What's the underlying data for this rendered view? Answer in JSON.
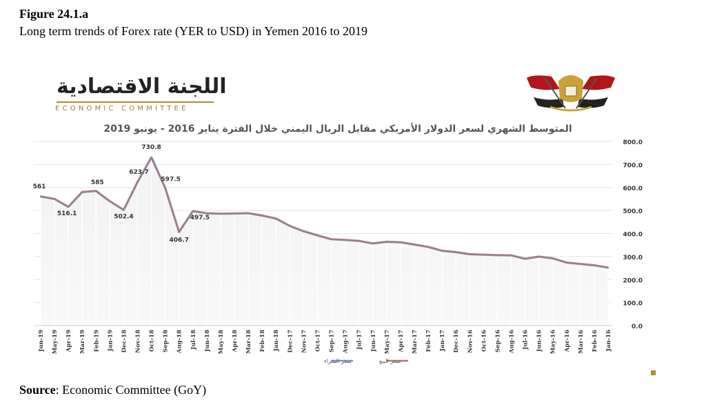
{
  "figure": {
    "label": "Figure 24.1.a",
    "caption": "Long term trends of Forex rate (YER to USD) in Yemen 2016 to 2019",
    "source_prefix": "Source",
    "source_text": ": Economic Committee (GoY)"
  },
  "logo": {
    "arabic": "اللجنة الاقتصادية",
    "english": "ECONOMIC COMMITTEE"
  },
  "emblem": {
    "icon": "yemen-eagle-emblem-icon"
  },
  "colors": {
    "buy_line": "#6f9bd1",
    "sell_line": "#b57670",
    "fill_top": "#f2f2f2",
    "fill_bottom": "#f9f9f9",
    "grid": "#e4e4e4",
    "text": "#333333"
  },
  "chart_data": {
    "type": "line",
    "title": "المتوسط الشهري لسعر الدولار الأمريكي مقابل الريال اليمني خلال الفترة يناير 2016 - يونيو 2019",
    "ylim": [
      0,
      800
    ],
    "y_ticks": [
      "800.0",
      "700.0",
      "600.0",
      "500.0",
      "400.0",
      "300.0",
      "200.0",
      "100.0",
      "0.0"
    ],
    "grid": true,
    "legend_position": "bottom-center",
    "categories": [
      "Jun-19",
      "May-19",
      "Apr-19",
      "Mar-19",
      "Feb-19",
      "Jan-19",
      "Dec-18",
      "Nov-18",
      "Oct-18",
      "Sep-18",
      "Aug-18",
      "Jul-18",
      "Jun-18",
      "May-18",
      "Apr-18",
      "Mar-18",
      "Feb-18",
      "Jan-18",
      "Dec-17",
      "Nov-17",
      "Oct-17",
      "Sep-17",
      "Aug-17",
      "Jul-17",
      "Jun-17",
      "May-17",
      "Apr-17",
      "Mar-17",
      "Feb-17",
      "Jan-17",
      "Dec-16",
      "Nov-16",
      "Oct-16",
      "Sep-16",
      "Aug-16",
      "Jul-16",
      "Jun-16",
      "May-16",
      "Apr-16",
      "Mar-16",
      "Feb-16",
      "Jan-16"
    ],
    "series": [
      {
        "name": "سعر الشراء",
        "values": [
          561,
          550,
          516.1,
          580,
          585,
          540,
          502.4,
          623.7,
          730.8,
          597.5,
          406.7,
          497.5,
          488,
          486,
          487,
          488,
          478,
          465,
          433,
          410,
          392,
          375,
          372,
          368,
          357,
          364,
          362,
          352,
          342,
          325,
          319,
          310,
          308,
          306,
          305,
          290,
          300,
          292,
          274,
          268,
          262,
          252
        ]
      },
      {
        "name": "سعر البيع",
        "values": [
          561,
          550,
          516.1,
          580,
          585,
          540,
          502.4,
          623.7,
          730.8,
          597.5,
          406.7,
          497.5,
          488,
          486,
          487,
          488,
          478,
          465,
          433,
          410,
          392,
          375,
          372,
          368,
          357,
          364,
          362,
          352,
          342,
          325,
          319,
          310,
          308,
          306,
          305,
          290,
          300,
          292,
          274,
          268,
          262,
          252
        ]
      }
    ],
    "data_labels": [
      {
        "index": 0,
        "text": "561"
      },
      {
        "index": 2,
        "text": "516.1"
      },
      {
        "index": 4,
        "text": "585"
      },
      {
        "index": 6,
        "text": "502.4"
      },
      {
        "index": 7,
        "text": "623.7"
      },
      {
        "index": 8,
        "text": "730.8"
      },
      {
        "index": 9,
        "text": "597.5"
      },
      {
        "index": 10,
        "text": "406.7"
      },
      {
        "index": 11,
        "text": "497.5"
      }
    ]
  }
}
